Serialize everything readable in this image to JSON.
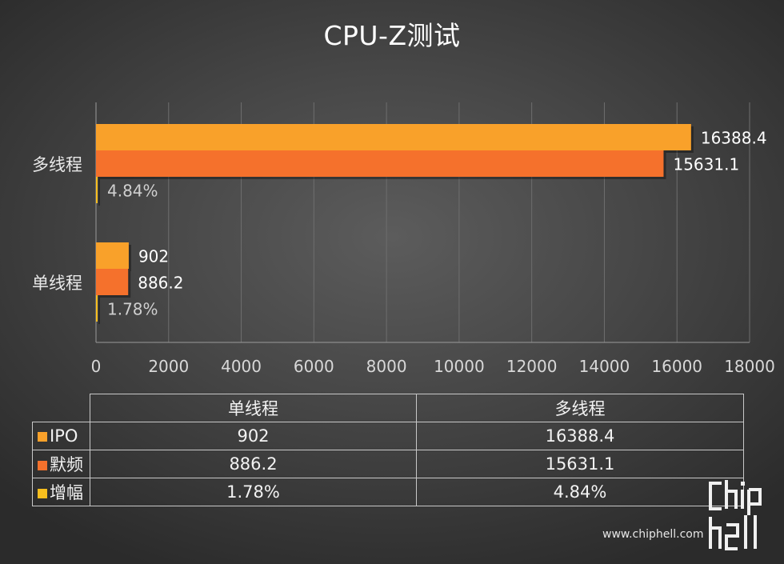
{
  "chart_data": {
    "type": "bar",
    "orientation": "horizontal",
    "title": "CPU-Z测试",
    "categories": [
      "单线程",
      "多线程"
    ],
    "series": [
      {
        "name": "IPO",
        "color": "#f9a12a",
        "values": [
          902,
          16388.4
        ],
        "labels": [
          "902",
          "16388.4"
        ]
      },
      {
        "name": "默频",
        "color": "#f5712c",
        "values": [
          886.2,
          15631.1
        ],
        "labels": [
          "886.2",
          "15631.1"
        ]
      },
      {
        "name": "增幅",
        "color": "#f6be1e",
        "values": [
          1.78,
          4.84
        ],
        "labels": [
          "1.78%",
          "4.84%"
        ]
      }
    ],
    "xlim": [
      0,
      18000
    ],
    "xticks": [
      "0",
      "2000",
      "4000",
      "6000",
      "8000",
      "10000",
      "12000",
      "14000",
      "16000",
      "18000"
    ],
    "grid": true,
    "legend": "data-table"
  },
  "table": {
    "columns": [
      "单线程",
      "多线程"
    ],
    "rows": [
      {
        "label": "IPO",
        "color": "#f9a12a",
        "values": [
          "902",
          "16388.4"
        ]
      },
      {
        "label": "默频",
        "color": "#f5712c",
        "values": [
          "886.2",
          "15631.1"
        ]
      },
      {
        "label": "增幅",
        "color": "#f6be1e",
        "values": [
          "1.78%",
          "4.84%"
        ]
      }
    ]
  },
  "watermark": {
    "url": "www.chiphell.com",
    "logo": "chip hell"
  }
}
